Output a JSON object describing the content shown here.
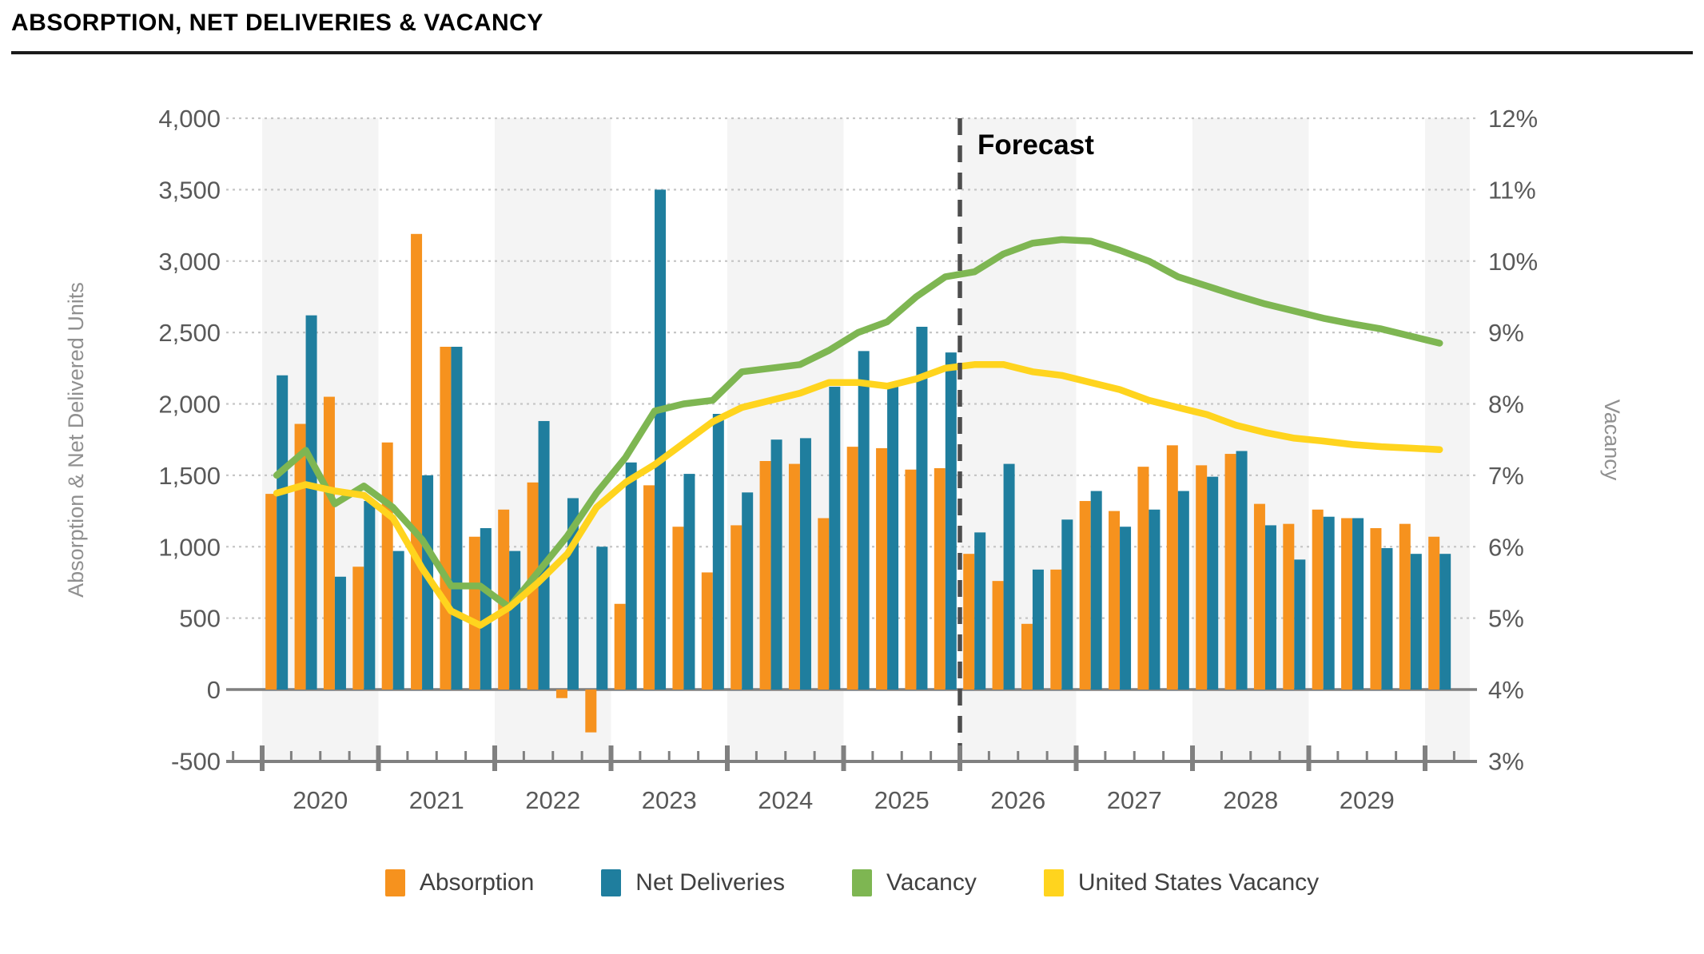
{
  "header": {
    "title": "ABSORPTION, NET DELIVERIES & VACANCY"
  },
  "forecast": {
    "label": "Forecast"
  },
  "axes": {
    "left_title": "Absorption & Net Delivered Units",
    "right_title": "Vacancy",
    "left_tick_labels": [
      "4,000",
      "3,500",
      "3,000",
      "2,500",
      "2,000",
      "1,500",
      "1,000",
      "500",
      "0",
      "-500"
    ],
    "right_tick_labels": [
      "12%",
      "11%",
      "10%",
      "9%",
      "8%",
      "7%",
      "6%",
      "5%",
      "4%",
      "3%"
    ],
    "year_labels": [
      "2020",
      "2021",
      "2022",
      "2023",
      "2024",
      "2025",
      "2026",
      "2027",
      "2028",
      "2029"
    ]
  },
  "legend": {
    "items": [
      {
        "label": "Absorption",
        "color": "#F6921E"
      },
      {
        "label": "Net Deliveries",
        "color": "#1F7E9E"
      },
      {
        "label": "Vacancy",
        "color": "#7EB652"
      },
      {
        "label": "United States Vacancy",
        "color": "#FFD41E"
      }
    ]
  },
  "colors": {
    "absorption": "#F6921E",
    "net_deliveries": "#1F7E9E",
    "vacancy": "#7EB652",
    "us_vacancy": "#FFD41E",
    "year_band": "#F4F4F4",
    "gridline": "#C6C6C6",
    "zero_line": "#7F7F7F",
    "axis_line": "#808080",
    "tick_label": "#595959",
    "axis_title": "#909090",
    "forecast_line": "#4D4D4D"
  },
  "chart_data": {
    "type": "combo-bar-line",
    "periods": [
      "2020 Q1",
      "2020 Q2",
      "2020 Q3",
      "2020 Q4",
      "2021 Q1",
      "2021 Q2",
      "2021 Q3",
      "2021 Q4",
      "2022 Q1",
      "2022 Q2",
      "2022 Q3",
      "2022 Q4",
      "2023 Q1",
      "2023 Q2",
      "2023 Q3",
      "2023 Q4",
      "2024 Q1",
      "2024 Q2",
      "2024 Q3",
      "2024 Q4",
      "2025 Q1",
      "2025 Q2",
      "2025 Q3",
      "2025 Q4",
      "2026 Q1",
      "2026 Q2",
      "2026 Q3",
      "2026 Q4",
      "2027 Q1",
      "2027 Q2",
      "2027 Q3",
      "2027 Q4",
      "2028 Q1",
      "2028 Q2",
      "2028 Q3",
      "2028 Q4",
      "2029 Q1",
      "2029 Q2",
      "2029 Q3",
      "2029 Q4",
      "2030 Q1"
    ],
    "series": [
      {
        "name": "Absorption",
        "type": "bar",
        "axis": "left",
        "values": [
          1370,
          1860,
          2050,
          860,
          1730,
          3190,
          2400,
          1070,
          1260,
          1450,
          -60,
          -300,
          600,
          1430,
          1140,
          820,
          1150,
          1600,
          1580,
          1200,
          1700,
          1690,
          1540,
          1550,
          950,
          760,
          460,
          840,
          1320,
          1250,
          1560,
          1710,
          1570,
          1650,
          1300,
          1160,
          1260,
          1200,
          1130,
          1160,
          1070
        ]
      },
      {
        "name": "Net Deliveries",
        "type": "bar",
        "axis": "left",
        "values": [
          2200,
          2620,
          790,
          1320,
          970,
          1500,
          2400,
          1130,
          970,
          1880,
          1340,
          1000,
          1590,
          3500,
          1510,
          1930,
          1380,
          1750,
          1760,
          2120,
          2370,
          2120,
          2540,
          2360,
          1100,
          1580,
          840,
          1190,
          1390,
          1140,
          1260,
          1390,
          1490,
          1670,
          1150,
          910,
          1210,
          1200,
          990,
          950,
          950
        ]
      },
      {
        "name": "Vacancy",
        "type": "line",
        "axis": "right",
        "values": [
          7.0,
          7.35,
          6.6,
          6.85,
          6.55,
          6.1,
          5.45,
          5.45,
          5.15,
          5.65,
          6.15,
          6.75,
          7.25,
          7.9,
          8.0,
          8.05,
          8.45,
          8.5,
          8.55,
          8.75,
          9.0,
          9.15,
          9.5,
          9.78,
          9.85,
          10.1,
          10.25,
          10.3,
          10.28,
          10.15,
          10.0,
          9.78,
          9.65,
          9.52,
          9.4,
          9.3,
          9.2,
          9.12,
          9.05,
          8.95,
          8.85
        ]
      },
      {
        "name": "United States Vacancy",
        "type": "line",
        "axis": "right",
        "values": [
          6.75,
          6.87,
          6.78,
          6.72,
          6.4,
          5.7,
          5.1,
          4.9,
          5.15,
          5.5,
          5.9,
          6.55,
          6.9,
          7.15,
          7.45,
          7.75,
          7.95,
          8.05,
          8.15,
          8.3,
          8.3,
          8.25,
          8.35,
          8.5,
          8.55,
          8.55,
          8.45,
          8.4,
          8.3,
          8.2,
          8.05,
          7.95,
          7.85,
          7.7,
          7.6,
          7.52,
          7.48,
          7.43,
          7.4,
          7.38,
          7.36
        ]
      }
    ],
    "left_axis": {
      "min": -500,
      "max": 4000,
      "step": 500,
      "title": "Absorption & Net Delivered Units"
    },
    "right_axis": {
      "min": 3,
      "max": 12,
      "step": 1,
      "unit": "%",
      "title": "Vacancy"
    },
    "x_axis": {
      "start_year": 2020,
      "quarters_per_year": 4,
      "shaded_years": [
        "2020",
        "2022",
        "2024",
        "2026",
        "2028"
      ]
    },
    "forecast_start_index": 24,
    "legend_position": "bottom",
    "grid": "horizontal-dashed"
  }
}
